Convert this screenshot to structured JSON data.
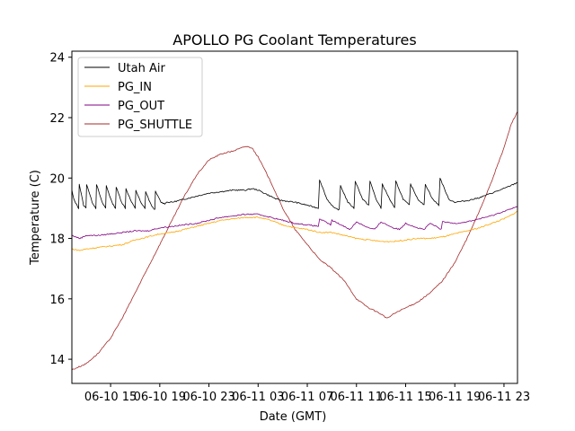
{
  "chart_data": {
    "type": "line",
    "title": "APOLLO PG Coolant Temperatures",
    "xlabel": "Date (GMT)",
    "ylabel": "Temperature (C)",
    "x_units": "hours since 06-10 00:00 GMT",
    "xlim": [
      11.85,
      48.1
    ],
    "ylim": [
      13.2,
      24.2
    ],
    "grid": false,
    "legend_position": "top-left",
    "x_ticks": [
      {
        "value": 15,
        "label": "06-10 15"
      },
      {
        "value": 19,
        "label": "06-10 19"
      },
      {
        "value": 23,
        "label": "06-10 23"
      },
      {
        "value": 27,
        "label": "06-11 03"
      },
      {
        "value": 31,
        "label": "06-11 07"
      },
      {
        "value": 35,
        "label": "06-11 11"
      },
      {
        "value": 39,
        "label": "06-11 15"
      },
      {
        "value": 43,
        "label": "06-11 19"
      },
      {
        "value": 47,
        "label": "06-11 23"
      }
    ],
    "y_ticks": [
      {
        "value": 14,
        "label": "14"
      },
      {
        "value": 16,
        "label": "16"
      },
      {
        "value": 18,
        "label": "18"
      },
      {
        "value": 20,
        "label": "20"
      },
      {
        "value": 22,
        "label": "22"
      },
      {
        "value": 24,
        "label": "24"
      }
    ],
    "series": [
      {
        "name": "Utah Air",
        "color": "#000000",
        "x": [
          11.85,
          12.0,
          12.4,
          12.45,
          12.8,
          13.0,
          13.05,
          13.5,
          13.8,
          13.85,
          14.3,
          14.6,
          14.65,
          15.1,
          15.4,
          15.45,
          15.9,
          16.2,
          16.25,
          16.7,
          17.0,
          17.05,
          17.5,
          17.8,
          17.85,
          18.3,
          18.6,
          18.65,
          19.1,
          19.4,
          19.5,
          20,
          21,
          22,
          23,
          24,
          25,
          26,
          26.5,
          27,
          27.5,
          28,
          28.5,
          29,
          30,
          31,
          31.9,
          32.0,
          32.6,
          33.2,
          33.6,
          33.7,
          34.3,
          34.8,
          34.9,
          35.5,
          36.0,
          36.1,
          36.6,
          37.0,
          37.1,
          37.7,
          38.1,
          38.2,
          38.8,
          39.3,
          39.4,
          40.0,
          40.5,
          40.6,
          41.2,
          41.7,
          41.8,
          42.5,
          43,
          44,
          45,
          46,
          47,
          48.1
        ],
        "y": [
          19.6,
          19.3,
          19.0,
          19.8,
          19.1,
          19.0,
          19.8,
          19.2,
          19.0,
          19.8,
          19.2,
          19.0,
          19.75,
          19.2,
          19.0,
          19.7,
          19.2,
          19.0,
          19.65,
          19.2,
          19.0,
          19.6,
          19.15,
          19.0,
          19.55,
          19.1,
          18.95,
          19.55,
          19.2,
          19.15,
          19.2,
          19.2,
          19.3,
          19.4,
          19.5,
          19.55,
          19.6,
          19.6,
          19.65,
          19.6,
          19.5,
          19.4,
          19.3,
          19.25,
          19.2,
          19.1,
          19.0,
          19.95,
          19.3,
          19.0,
          18.95,
          19.75,
          19.2,
          19.0,
          19.9,
          19.3,
          19.1,
          19.9,
          19.3,
          19.0,
          19.8,
          19.3,
          19.0,
          19.9,
          19.3,
          19.1,
          19.8,
          19.3,
          19.1,
          19.8,
          19.3,
          19.1,
          20.0,
          19.3,
          19.2,
          19.25,
          19.35,
          19.5,
          19.65,
          19.85
        ]
      },
      {
        "name": "PG_IN",
        "color": "#FFA500",
        "x": [
          11.85,
          12.5,
          13,
          14,
          15,
          16,
          17,
          18,
          19,
          20,
          21,
          22,
          23,
          24,
          25,
          26,
          27,
          28,
          29,
          30,
          31,
          32,
          33,
          34,
          35,
          36,
          37,
          38,
          39,
          40,
          41,
          42,
          43,
          44,
          45,
          46,
          47,
          47.5,
          48.1
        ],
        "y": [
          17.65,
          17.6,
          17.65,
          17.7,
          17.75,
          17.8,
          17.95,
          18.05,
          18.15,
          18.2,
          18.3,
          18.4,
          18.5,
          18.6,
          18.65,
          18.7,
          18.7,
          18.6,
          18.45,
          18.35,
          18.3,
          18.2,
          18.2,
          18.1,
          18.0,
          17.95,
          17.9,
          17.9,
          17.95,
          18.0,
          18.0,
          18.05,
          18.15,
          18.25,
          18.35,
          18.5,
          18.65,
          18.75,
          18.9
        ]
      },
      {
        "name": "PG_OUT",
        "color": "#800080",
        "x": [
          11.85,
          12.5,
          13,
          14,
          15,
          16,
          17,
          18,
          19,
          20,
          21,
          22,
          23,
          24,
          25,
          26,
          27,
          28,
          29,
          30,
          31,
          31.9,
          32,
          32.9,
          33,
          34,
          34.5,
          35,
          36,
          36.5,
          37,
          38,
          38.5,
          39,
          40,
          40.5,
          41,
          41.9,
          42,
          43,
          44,
          45,
          46,
          47,
          48.1
        ],
        "y": [
          18.1,
          18.0,
          18.1,
          18.1,
          18.15,
          18.2,
          18.25,
          18.25,
          18.35,
          18.4,
          18.45,
          18.5,
          18.6,
          18.7,
          18.75,
          18.8,
          18.8,
          18.7,
          18.6,
          18.5,
          18.45,
          18.4,
          18.65,
          18.45,
          18.6,
          18.4,
          18.3,
          18.55,
          18.35,
          18.3,
          18.55,
          18.35,
          18.3,
          18.5,
          18.35,
          18.3,
          18.5,
          18.3,
          18.55,
          18.5,
          18.55,
          18.65,
          18.75,
          18.9,
          19.05
        ]
      },
      {
        "name": "PG_SHUTTLE",
        "color": "#A52A2A",
        "x": [
          11.85,
          13,
          14,
          15,
          16,
          17,
          18,
          19,
          20,
          21,
          22,
          23,
          24,
          25,
          26,
          26.5,
          27,
          28,
          29,
          30,
          31,
          32,
          33,
          34,
          35,
          36,
          37,
          37.5,
          38,
          39,
          40,
          41,
          42,
          43,
          44,
          45,
          46,
          47,
          47.6,
          48.1
        ],
        "y": [
          13.65,
          13.85,
          14.2,
          14.7,
          15.4,
          16.2,
          17.0,
          17.8,
          18.6,
          19.4,
          20.1,
          20.6,
          20.8,
          20.9,
          21.05,
          21.0,
          20.7,
          19.9,
          19.0,
          18.3,
          17.8,
          17.3,
          17.0,
          16.6,
          16.0,
          15.7,
          15.5,
          15.35,
          15.5,
          15.7,
          15.9,
          16.2,
          16.6,
          17.2,
          18.0,
          18.9,
          19.9,
          21.0,
          21.8,
          22.2
        ]
      }
    ]
  }
}
